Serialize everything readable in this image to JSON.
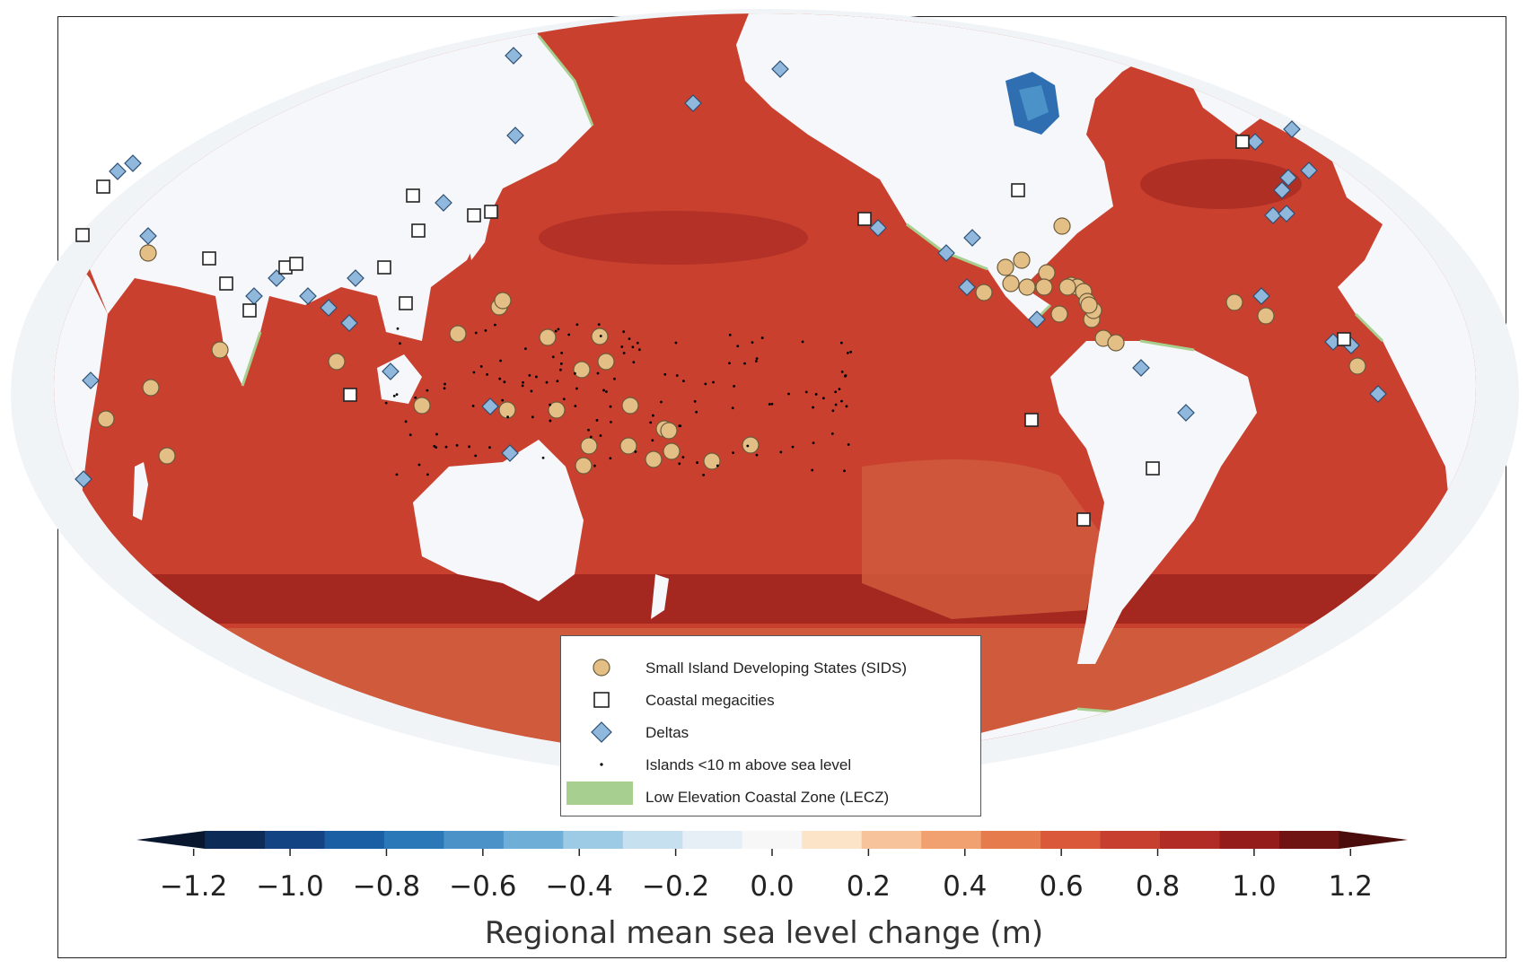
{
  "figure": {
    "colorbar": {
      "title": "Regional mean sea level change (m)",
      "ticks": [
        "−1.2",
        "−1.0",
        "−0.8",
        "−0.6",
        "−0.4",
        "−0.2",
        "0.0",
        "0.2",
        "0.4",
        "0.6",
        "0.8",
        "1.0",
        "1.2"
      ],
      "range": [
        -1.3,
        1.3
      ],
      "bin_width": 0.1,
      "colors": [
        "#08172e",
        "#0c2c57",
        "#134383",
        "#1a5ea4",
        "#2b78b8",
        "#4a92c8",
        "#6eaed7",
        "#9dcbe6",
        "#c6e0ef",
        "#e6eff5",
        "#f7f7f7",
        "#fbe4c8",
        "#f7c39a",
        "#f1a170",
        "#e67b4e",
        "#d9593a",
        "#c73f2e",
        "#b02c24",
        "#941d1c",
        "#6f1413",
        "#4a0d0c"
      ]
    },
    "legend": {
      "items": [
        {
          "label": "Small Island Developing States (SIDS)",
          "symbol": "circle-icon"
        },
        {
          "label": "Coastal megacities",
          "symbol": "square-icon"
        },
        {
          "label": "Deltas",
          "symbol": "diamond-icon"
        },
        {
          "label": "Islands <10 m above sea level",
          "symbol": "dot-icon"
        },
        {
          "label": "Low Elevation Coastal Zone (LECZ)",
          "symbol": "lecz-swatch-icon"
        }
      ]
    },
    "colors": {
      "ocean_base": "#c9402f",
      "ocean_south": "#d05a3c",
      "ocean_dark": "#a0251f",
      "land": "#f5f7fa",
      "lecz": "#a7cf8f",
      "sids_fill": "#e3be85",
      "delta_fill": "#8fb8dc",
      "megacity_fill": "#ffffff"
    }
  }
}
